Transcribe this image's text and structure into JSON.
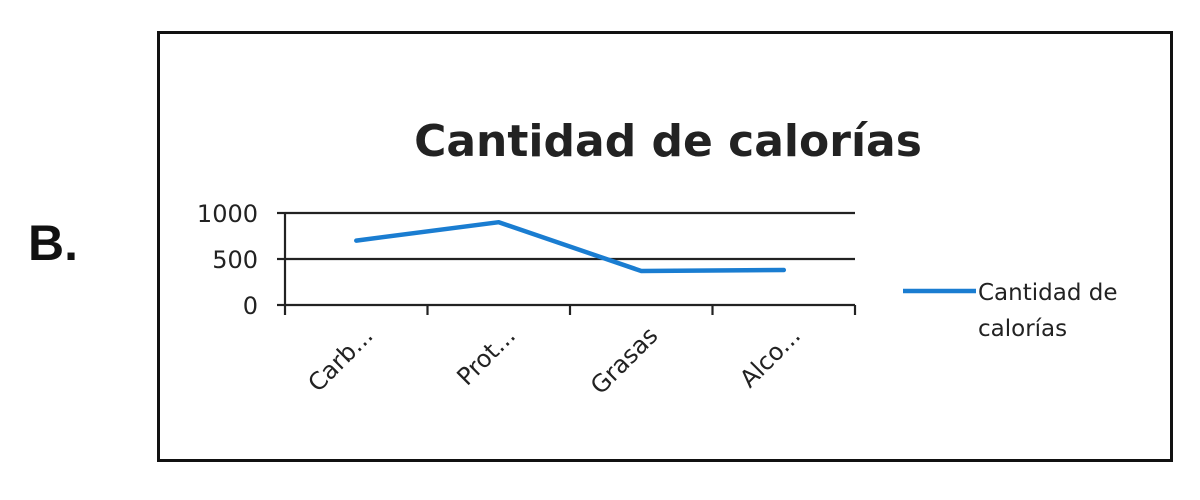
{
  "option_letter": "B.",
  "chart_data": {
    "type": "line",
    "title": "Cantidad de calorías",
    "categories": [
      "Carb...",
      "Prot...",
      "Grasas",
      "Alco..."
    ],
    "series": [
      {
        "name": "Cantidad de calorías",
        "values": [
          700,
          900,
          370,
          380
        ],
        "color": "#1a7dd1"
      }
    ],
    "yticks": [
      0,
      500,
      1000
    ],
    "ylim": [
      0,
      1000
    ],
    "grid": true,
    "legend_position": "right",
    "legend_lines": [
      "Cantidad de",
      "calorías"
    ]
  }
}
